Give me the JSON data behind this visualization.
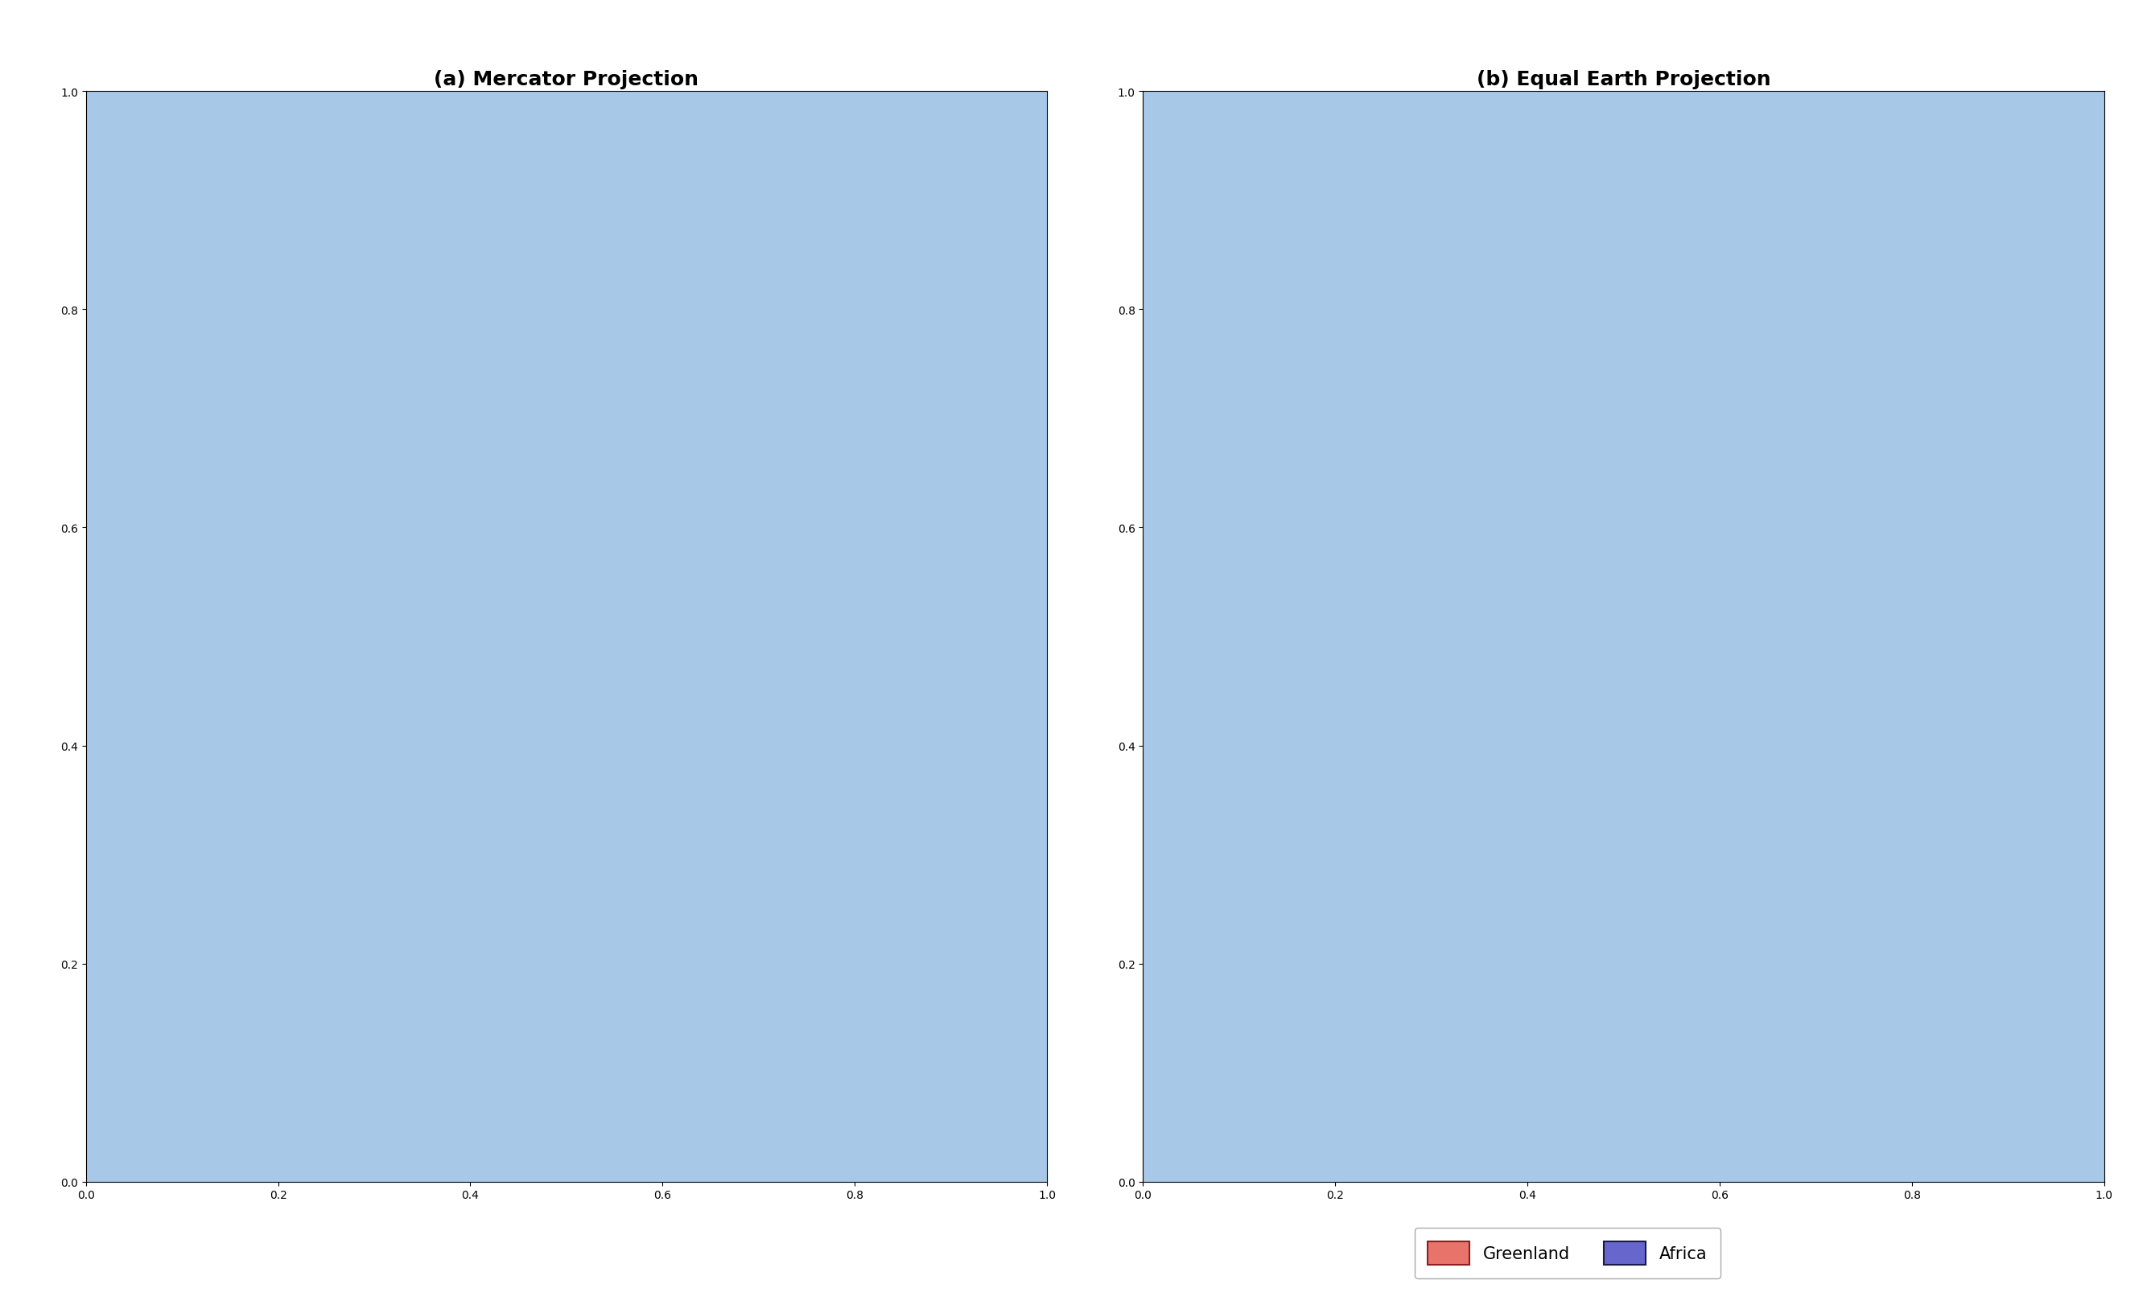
{
  "title_a": "(a) Mercator Projection",
  "title_b": "(b) Equal Earth Projection",
  "greenland_color": "#E8736A",
  "africa_color": "#6666CC",
  "greenland_edge_color": "#8B2020",
  "africa_edge_color": "#1a1a4a",
  "ocean_color": "#A8C8E8",
  "land_color": "#F5F0DC",
  "grid_color": "#808080",
  "title_fontsize": 18,
  "tick_fontsize": 13,
  "legend_fontsize": 15,
  "mercator_lon_extent": [
    -70,
    70
  ],
  "mercator_lat_extent": [
    -35,
    84
  ],
  "equalearth_lon_extent": [
    -150,
    150
  ],
  "equalearth_lat_extent": [
    -40,
    85
  ],
  "mercator_xticks": [
    -60,
    -40,
    -20,
    0,
    20,
    40,
    60
  ],
  "mercator_yticks": [
    -20,
    0,
    20,
    40,
    60,
    80
  ],
  "equalearth_xticks": [
    -120,
    -60,
    0,
    60,
    120
  ],
  "equalearth_yticks": [
    -20,
    0,
    20,
    40,
    60,
    80
  ],
  "background_color": "#ffffff",
  "legend_greenland": "Greenland",
  "legend_africa": "Africa"
}
